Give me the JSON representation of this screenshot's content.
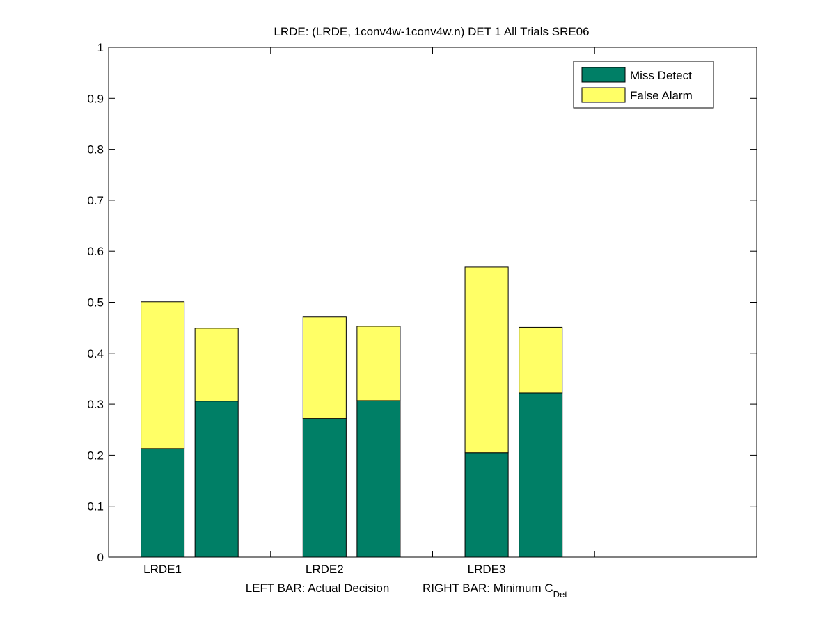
{
  "chart_data": {
    "type": "bar",
    "stacked": true,
    "title": "LRDE: (LRDE, 1conv4w-1conv4w.n) DET 1 All Trials SRE06",
    "xlabel_left": "LEFT BAR: Actual Decision",
    "xlabel_right_main": "RIGHT BAR: Minimum C",
    "xlabel_right_sub": "Det",
    "ylabel": "",
    "ylim": [
      0,
      1
    ],
    "yticks": [
      "0",
      "0.1",
      "0.2",
      "0.3",
      "0.4",
      "0.5",
      "0.6",
      "0.7",
      "0.8",
      "0.9",
      "1"
    ],
    "xlim": [
      0,
      12
    ],
    "categories": [
      "LRDE1",
      "LRDE2",
      "LRDE3"
    ],
    "bars": [
      {
        "group": "LRDE1",
        "position": "left",
        "miss_detect": 0.213,
        "false_alarm": 0.288
      },
      {
        "group": "LRDE1",
        "position": "right",
        "miss_detect": 0.306,
        "false_alarm": 0.143
      },
      {
        "group": "LRDE2",
        "position": "left",
        "miss_detect": 0.272,
        "false_alarm": 0.199
      },
      {
        "group": "LRDE2",
        "position": "right",
        "miss_detect": 0.307,
        "false_alarm": 0.146
      },
      {
        "group": "LRDE3",
        "position": "left",
        "miss_detect": 0.205,
        "false_alarm": 0.364
      },
      {
        "group": "LRDE3",
        "position": "right",
        "miss_detect": 0.322,
        "false_alarm": 0.129
      }
    ],
    "series": [
      {
        "name": "Miss Detect",
        "color": "#007f66"
      },
      {
        "name": "False Alarm",
        "color": "#ffff66"
      }
    ],
    "legend_position": "top-right",
    "grid": false
  }
}
